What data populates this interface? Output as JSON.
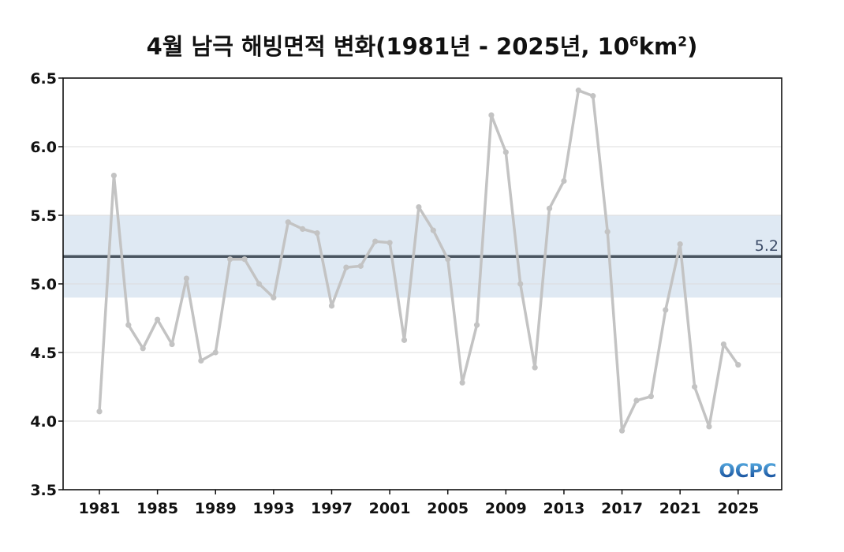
{
  "title": {
    "main": "4월 남극 해빙면적 변화(1981년 - 2025년, 10",
    "exp1": "6",
    "mid": "km",
    "exp2": "2",
    "end": ")"
  },
  "logo": {
    "text": "OCPC",
    "colors": {
      "top": "#5fb8ea",
      "bottom": "#0a3d8f"
    }
  },
  "chart_data": {
    "type": "line",
    "x": [
      1981,
      1982,
      1983,
      1984,
      1985,
      1986,
      1987,
      1988,
      1989,
      1990,
      1991,
      1992,
      1993,
      1994,
      1995,
      1996,
      1997,
      1998,
      1999,
      2000,
      2001,
      2002,
      2003,
      2004,
      2005,
      2006,
      2007,
      2008,
      2009,
      2010,
      2011,
      2012,
      2013,
      2014,
      2015,
      2016,
      2017,
      2018,
      2019,
      2020,
      2021,
      2022,
      2023,
      2024,
      2025
    ],
    "series": [
      {
        "values": [
          4.07,
          5.79,
          4.7,
          4.53,
          4.74,
          4.56,
          5.04,
          4.44,
          4.5,
          5.18,
          5.18,
          5.0,
          4.9,
          5.45,
          5.4,
          5.37,
          4.84,
          5.12,
          5.13,
          5.31,
          5.3,
          4.59,
          5.56,
          5.39,
          5.18,
          4.28,
          4.7,
          6.23,
          5.96,
          5.0,
          4.39,
          5.55,
          5.75,
          6.41,
          6.37,
          5.38,
          3.93,
          4.15,
          4.18,
          4.81,
          5.29,
          4.25,
          3.96,
          4.56,
          4.41
        ],
        "color": "#c3c3c3"
      }
    ],
    "xlim": [
      1978.5,
      2028
    ],
    "ylim": [
      3.5,
      6.5
    ],
    "yticks": [
      "3.5",
      "4.0",
      "4.5",
      "5.0",
      "5.5",
      "6.0",
      "6.5"
    ],
    "xticks": [
      "1981",
      "1985",
      "1989",
      "1993",
      "1997",
      "2001",
      "2005",
      "2009",
      "2013",
      "2017",
      "2021",
      "2025"
    ],
    "reference_line": {
      "value": 5.2,
      "label": "5.2",
      "color": "#4a5560"
    },
    "reference_band": {
      "low": 4.9,
      "high": 5.5,
      "color": "#dfe9f3"
    },
    "grid": true
  }
}
